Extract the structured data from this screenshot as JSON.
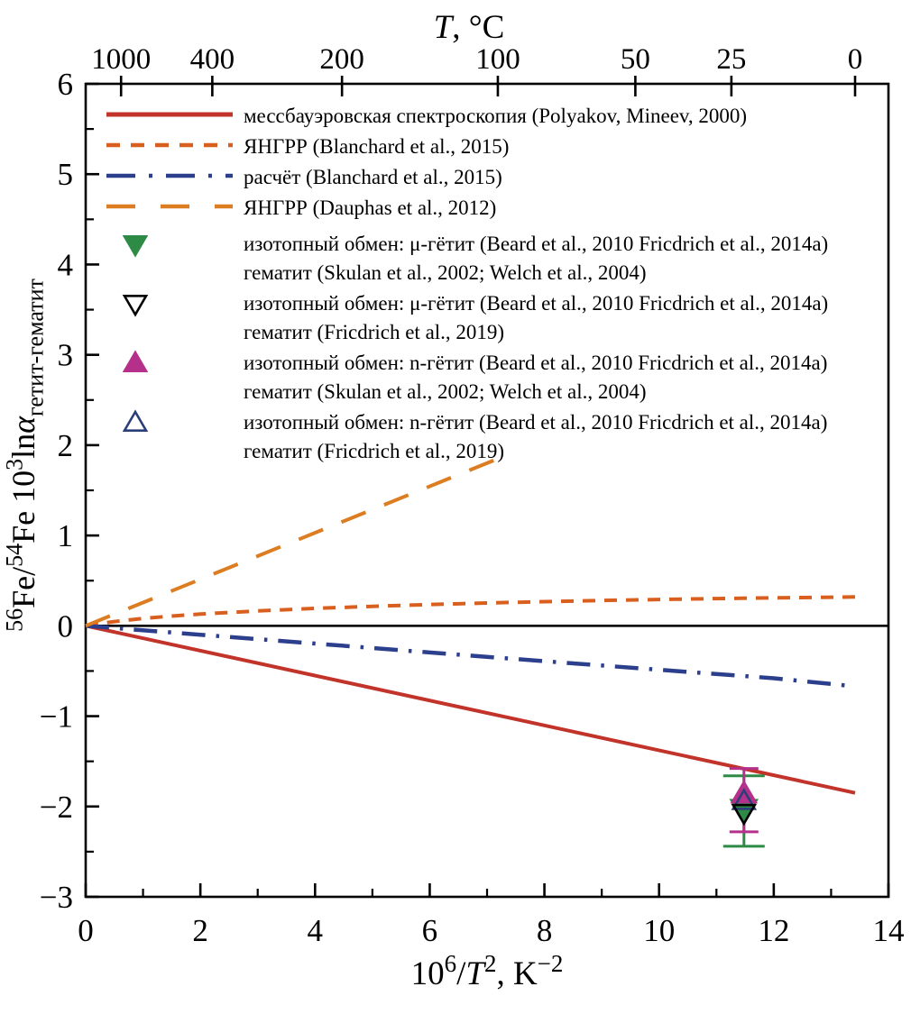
{
  "chart_data": {
    "type": "line",
    "title": "",
    "xlabel": "10^6/T^2, K^-2",
    "ylabel": "56Fe/54Fe 10^3 ln(alpha)_goethite-hematite",
    "xlim": [
      0,
      14
    ],
    "ylim": [
      -3,
      6
    ],
    "grid": false,
    "legend_position": "upper-left-inside",
    "x_major_ticks": [
      0,
      2,
      4,
      6,
      8,
      10,
      12,
      14
    ],
    "x_minor_ticks": [
      1,
      3,
      5,
      7,
      9,
      11,
      13
    ],
    "y_major_ticks": [
      -3,
      -2,
      -1,
      0,
      1,
      2,
      3,
      4,
      5,
      6
    ],
    "y_minor_step": 0.5,
    "xlabel_parts": [
      {
        "t": "10"
      },
      {
        "t": "6",
        "sup": true
      },
      {
        "t": "/"
      },
      {
        "t": "T",
        "italic": true
      },
      {
        "t": "2",
        "sup": true
      },
      {
        "t": ", K"
      },
      {
        "t": "−2",
        "sup": true
      }
    ],
    "ylabel_parts": [
      {
        "t": "56",
        "sup": true
      },
      {
        "t": "Fe/"
      },
      {
        "t": "54",
        "sup": true
      },
      {
        "t": "Fe 10",
        "italicnone": true
      },
      {
        "t": "3",
        "sup": true
      },
      {
        "t": "ln"
      },
      {
        "t": "α",
        "italic": true
      },
      {
        "t": "гетит-гематит",
        "sub": true
      }
    ],
    "top_axis": {
      "title": "T, °C",
      "title_parts": [
        {
          "t": "T",
          "italic": true
        },
        {
          "t": ", °C"
        }
      ],
      "ticks": [
        {
          "label": "1000",
          "x": 0.617
        },
        {
          "label": "400",
          "x": 2.208
        },
        {
          "label": "200",
          "x": 4.47
        },
        {
          "label": "100",
          "x": 7.188
        },
        {
          "label": "50",
          "x": 9.586
        },
        {
          "label": "25",
          "x": 11.261
        },
        {
          "label": "0",
          "x": 13.418
        }
      ]
    },
    "zero_line": {
      "y": 0,
      "color": "#000000"
    },
    "series": [
      {
        "key": "polyakov-mineev-2000",
        "label": "мессбауэровская спектроскопия (Polyakov, Mineev, 2000)",
        "style": "solid",
        "color": "#c2332a",
        "width": 4,
        "points": [
          [
            0,
            0
          ],
          [
            13.418,
            -1.85
          ]
        ]
      },
      {
        "key": "yangrr-blanchard-2015",
        "label": "ЯНГРР (Blanchard et al., 2015)",
        "style": "short-dash",
        "color": "#d95f1e",
        "width": 4,
        "points": [
          [
            0,
            0
          ],
          [
            0.5,
            0.047
          ],
          [
            1,
            0.082
          ],
          [
            1.5,
            0.108
          ],
          [
            2,
            0.13
          ],
          [
            3,
            0.165
          ],
          [
            4,
            0.193
          ],
          [
            5,
            0.216
          ],
          [
            6,
            0.236
          ],
          [
            7,
            0.253
          ],
          [
            8,
            0.268
          ],
          [
            9,
            0.281
          ],
          [
            10,
            0.292
          ],
          [
            11,
            0.302
          ],
          [
            12,
            0.31
          ],
          [
            13,
            0.317
          ],
          [
            13.418,
            0.32
          ]
        ]
      },
      {
        "key": "raschet-blanchard-2015",
        "label": "расчёт (Blanchard et al., 2015)",
        "style": "dash-dot",
        "color": "#2c3f8c",
        "width": 4.5,
        "points": [
          [
            0,
            0
          ],
          [
            2,
            -0.098
          ],
          [
            4,
            -0.196
          ],
          [
            6,
            -0.295
          ],
          [
            8,
            -0.392
          ],
          [
            10,
            -0.487
          ],
          [
            12,
            -0.58
          ],
          [
            13.418,
            -0.67
          ]
        ]
      },
      {
        "key": "yangrr-dauphas-2012",
        "label": "ЯНГРР (Dauphas et al., 2012)",
        "style": "long-dash",
        "color": "#dd7d22",
        "width": 4,
        "points": [
          [
            0,
            0
          ],
          [
            7.188,
            1.85
          ]
        ]
      }
    ],
    "error_bars": [
      {
        "x": 11.48,
        "hi": -1.66,
        "lo": -2.44,
        "color": "#2e8b45",
        "cap_halfwidth": 23
      },
      {
        "x": 11.48,
        "hi": -1.58,
        "lo": -2.28,
        "color": "#b5308a",
        "cap_halfwidth": 16
      }
    ],
    "points": [
      {
        "key": "mu-goethite-hematite-skulan",
        "x": 11.48,
        "y": -2.03,
        "marker": "triangle-down",
        "fill": "#2e8b45",
        "stroke": "#2e8b45",
        "size": 14
      },
      {
        "key": "n-goethite-hematite-skulan",
        "x": 11.48,
        "y": -1.86,
        "marker": "triangle-up",
        "fill": "#b5308a",
        "stroke": "#b5308a",
        "size": 13
      },
      {
        "key": "n-goethite-hematite-friedrich",
        "x": 11.48,
        "y": -1.94,
        "marker": "triangle-up-open",
        "fill": "none",
        "stroke": "#2c3e7a",
        "size": 12
      },
      {
        "key": "mu-goethite-hematite-friedrich",
        "x": 11.48,
        "y": -2.07,
        "marker": "triangle-down-open",
        "fill": "none",
        "stroke": "#000000",
        "size": 12
      }
    ],
    "legend": [
      {
        "type": "line",
        "style": "solid",
        "color": "#c2332a",
        "lines": [
          "мессбауэровская спектроскопия (Polyakov, Mineev, 2000)"
        ]
      },
      {
        "type": "line",
        "style": "short-dash",
        "color": "#d95f1e",
        "lines": [
          "ЯНГРР (Blanchard et al., 2015)"
        ]
      },
      {
        "type": "line",
        "style": "dash-dot",
        "color": "#2c3f8c",
        "lines": [
          "расчёт (Blanchard et al., 2015)"
        ]
      },
      {
        "type": "line",
        "style": "long-dash",
        "color": "#dd7d22",
        "lines": [
          "ЯНГРР (Dauphas et al., 2012)"
        ]
      },
      {
        "type": "marker",
        "marker": "triangle-down",
        "fill": "#2e8b45",
        "stroke": "#2e8b45",
        "lines": [
          "изотопный обмен: μ-гётит (Beard et al., 2010 Fricdrich et al., 2014a)",
          "гематит (Skulan et al., 2002; Welch et al., 2004)"
        ]
      },
      {
        "type": "marker",
        "marker": "triangle-down-open",
        "fill": "none",
        "stroke": "#000000",
        "lines": [
          "изотопный обмен: μ-гётит (Beard et al., 2010 Fricdrich et al., 2014a)",
          "гематит (Fricdrich et al., 2019)"
        ]
      },
      {
        "type": "marker",
        "marker": "triangle-up",
        "fill": "#b5308a",
        "stroke": "#b5308a",
        "lines": [
          "изотопный обмен: n-гётит (Beard et al., 2010 Fricdrich et al., 2014a)",
          "гематит (Skulan et al., 2002; Welch et al., 2004)"
        ]
      },
      {
        "type": "marker",
        "marker": "triangle-up-open",
        "fill": "none",
        "stroke": "#2c3e7a",
        "lines": [
          "изотопный обмен: n-гётит (Beard et al., 2010 Fricdrich et al., 2014a)",
          "гематит (Fricdrich et al., 2019)"
        ]
      }
    ]
  }
}
